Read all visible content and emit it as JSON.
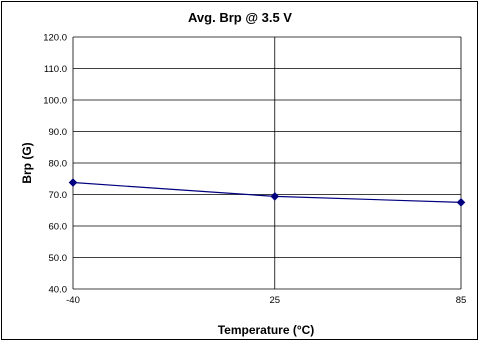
{
  "chart_data": {
    "type": "line",
    "title": "Avg. Brp @ 3.5 V",
    "xlabel": "Temperature (°C)",
    "ylabel": "Brp (G)",
    "x": [
      -40,
      25,
      85
    ],
    "x_tick_labels": [
      "-40",
      "25",
      "85"
    ],
    "ylim": [
      40,
      120
    ],
    "y_ticks": [
      40,
      50,
      60,
      70,
      80,
      90,
      100,
      110,
      120
    ],
    "y_tick_labels": [
      "40.0",
      "50.0",
      "60.0",
      "70.0",
      "80.0",
      "90.0",
      "100.0",
      "110.0",
      "120.0"
    ],
    "grid": true,
    "legend": false,
    "series": [
      {
        "values": [
          73.8,
          69.4,
          67.5
        ],
        "color": "#00007f"
      }
    ]
  }
}
